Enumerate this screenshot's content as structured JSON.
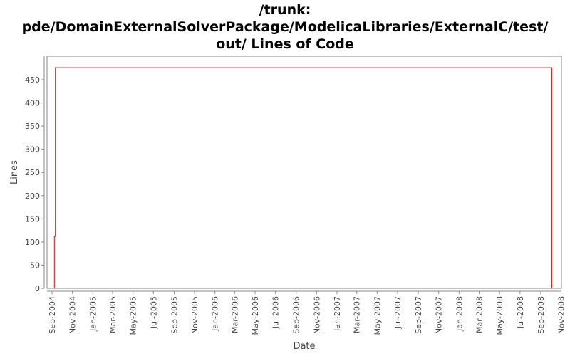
{
  "chart_data": {
    "type": "line",
    "title_lines": [
      "/trunk:",
      "pde/DomainExternalSolverPackage/ModelicaLibraries/ExternalC/test/",
      "out/ Lines of Code"
    ],
    "xlabel": "Date",
    "ylabel": "Lines",
    "xlim": [
      "2004-08-17",
      "2008-11-02"
    ],
    "ylim": [
      0,
      500
    ],
    "y_ticks": [
      0,
      50,
      100,
      150,
      200,
      250,
      300,
      350,
      400,
      450
    ],
    "x_ticks": [
      "Sep-2004",
      "Nov-2004",
      "Jan-2005",
      "Mar-2005",
      "May-2005",
      "Jul-2005",
      "Sep-2005",
      "Nov-2005",
      "Jan-2006",
      "Mar-2006",
      "May-2006",
      "Jul-2006",
      "Sep-2006",
      "Nov-2006",
      "Jan-2007",
      "Mar-2007",
      "May-2007",
      "Jul-2007",
      "Sep-2007",
      "Nov-2007",
      "Jan-2008",
      "Mar-2008",
      "May-2008",
      "Jul-2008",
      "Sep-2008",
      "Nov-2008"
    ],
    "x_tick_dates": [
      "2004-09-01",
      "2004-11-01",
      "2005-01-01",
      "2005-03-01",
      "2005-05-01",
      "2005-07-01",
      "2005-09-01",
      "2005-11-01",
      "2006-01-01",
      "2006-03-01",
      "2006-05-01",
      "2006-07-01",
      "2006-09-01",
      "2006-11-01",
      "2007-01-01",
      "2007-03-01",
      "2007-05-01",
      "2007-07-01",
      "2007-09-01",
      "2007-11-01",
      "2008-01-01",
      "2008-03-01",
      "2008-05-01",
      "2008-07-01",
      "2008-09-01",
      "2008-11-01"
    ],
    "series": [
      {
        "color": "#ff0000",
        "step": true,
        "points": [
          [
            "2004-09-08",
            0
          ],
          [
            "2004-09-08",
            112
          ],
          [
            "2004-09-11",
            112
          ],
          [
            "2004-09-11",
            476
          ],
          [
            "2008-10-04",
            476
          ],
          [
            "2008-10-04",
            0
          ]
        ]
      }
    ],
    "grid": false,
    "legend": "none"
  }
}
